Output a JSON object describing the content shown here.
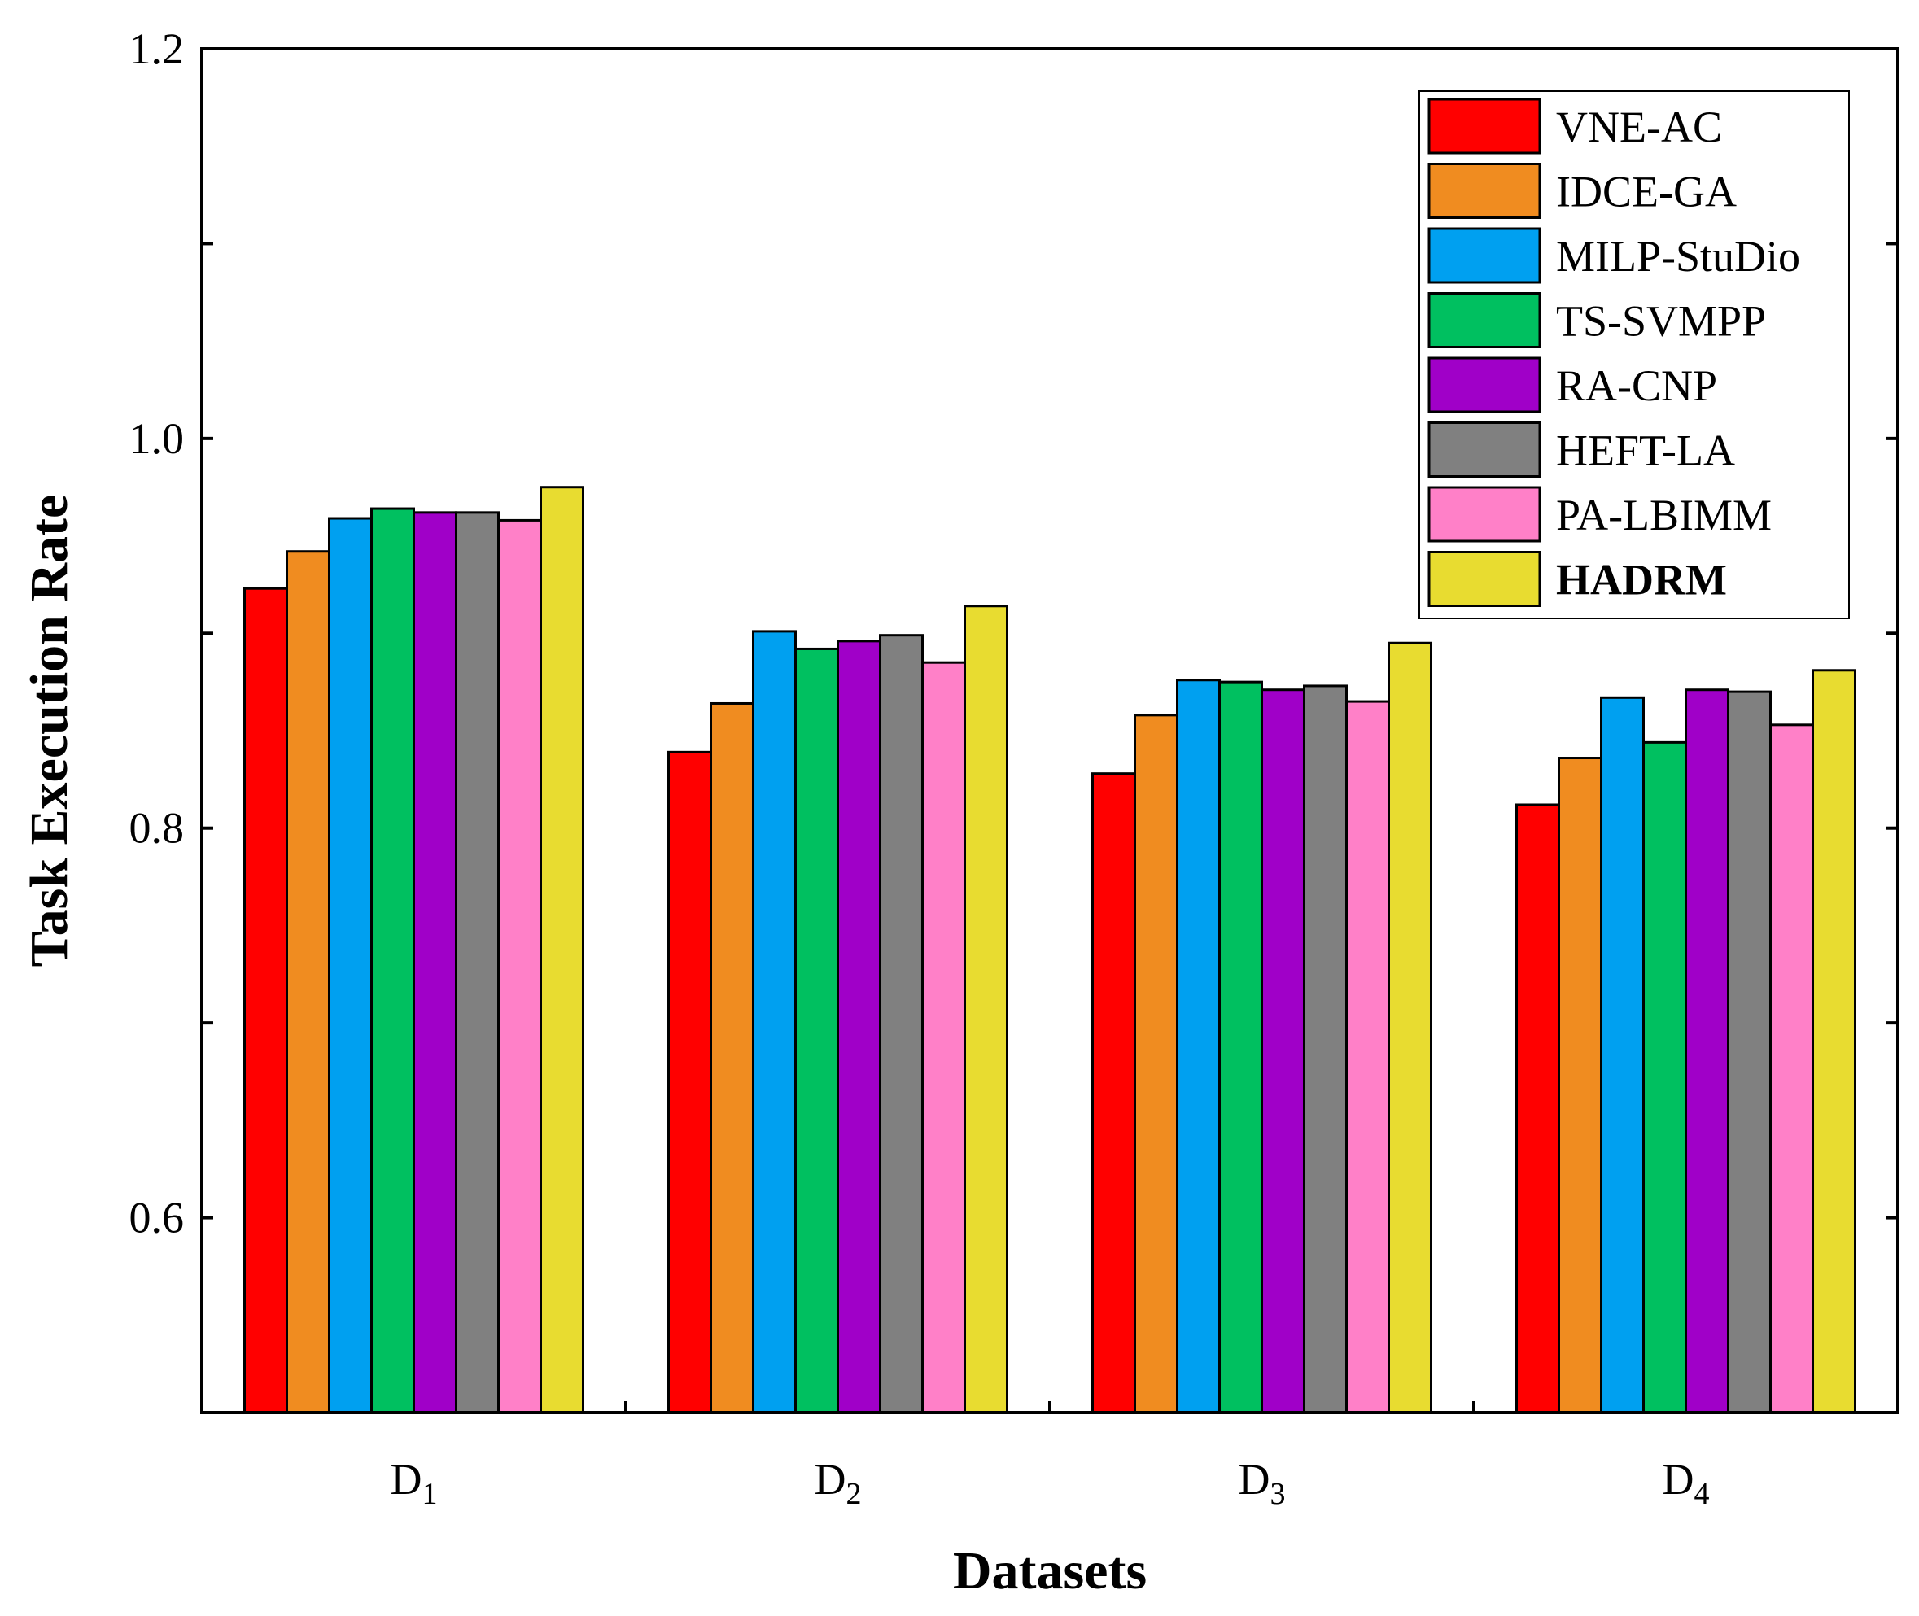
{
  "chart_data": {
    "type": "bar",
    "title": "",
    "xlabel": "Datasets",
    "ylabel": "Task Execution Rate",
    "ylim": [
      0.5,
      1.2
    ],
    "yticks": [
      0.6,
      0.8,
      1.0,
      1.2
    ],
    "ytick_labels": [
      "0.6",
      "0.8",
      "1.0",
      "1.2"
    ],
    "categories": [
      {
        "base": "D",
        "sub": "1"
      },
      {
        "base": "D",
        "sub": "2"
      },
      {
        "base": "D",
        "sub": "3"
      },
      {
        "base": "D",
        "sub": "4"
      }
    ],
    "legend_position": "top-right",
    "series": [
      {
        "name": "VNE-AC",
        "color": "#ff0000",
        "bold": false,
        "values": [
          0.923,
          0.839,
          0.828,
          0.812
        ]
      },
      {
        "name": "IDCE-GA",
        "color": "#f08c20",
        "bold": false,
        "values": [
          0.942,
          0.864,
          0.858,
          0.836
        ]
      },
      {
        "name": "MILP-StuDio",
        "color": "#00a0f0",
        "bold": false,
        "values": [
          0.959,
          0.901,
          0.876,
          0.867
        ]
      },
      {
        "name": "TS-SVMPP",
        "color": "#00c060",
        "bold": false,
        "values": [
          0.964,
          0.892,
          0.875,
          0.844
        ]
      },
      {
        "name": "RA-CNP",
        "color": "#a000c8",
        "bold": false,
        "values": [
          0.962,
          0.896,
          0.871,
          0.871
        ]
      },
      {
        "name": "HEFT-LA",
        "color": "#808080",
        "bold": false,
        "values": [
          0.962,
          0.899,
          0.873,
          0.87
        ]
      },
      {
        "name": "PA-LBIMM",
        "color": "#ff80c8",
        "bold": false,
        "values": [
          0.958,
          0.885,
          0.865,
          0.853
        ]
      },
      {
        "name": "HADRM",
        "color": "#e8dc30",
        "bold": true,
        "values": [
          0.975,
          0.914,
          0.895,
          0.881
        ]
      }
    ]
  }
}
